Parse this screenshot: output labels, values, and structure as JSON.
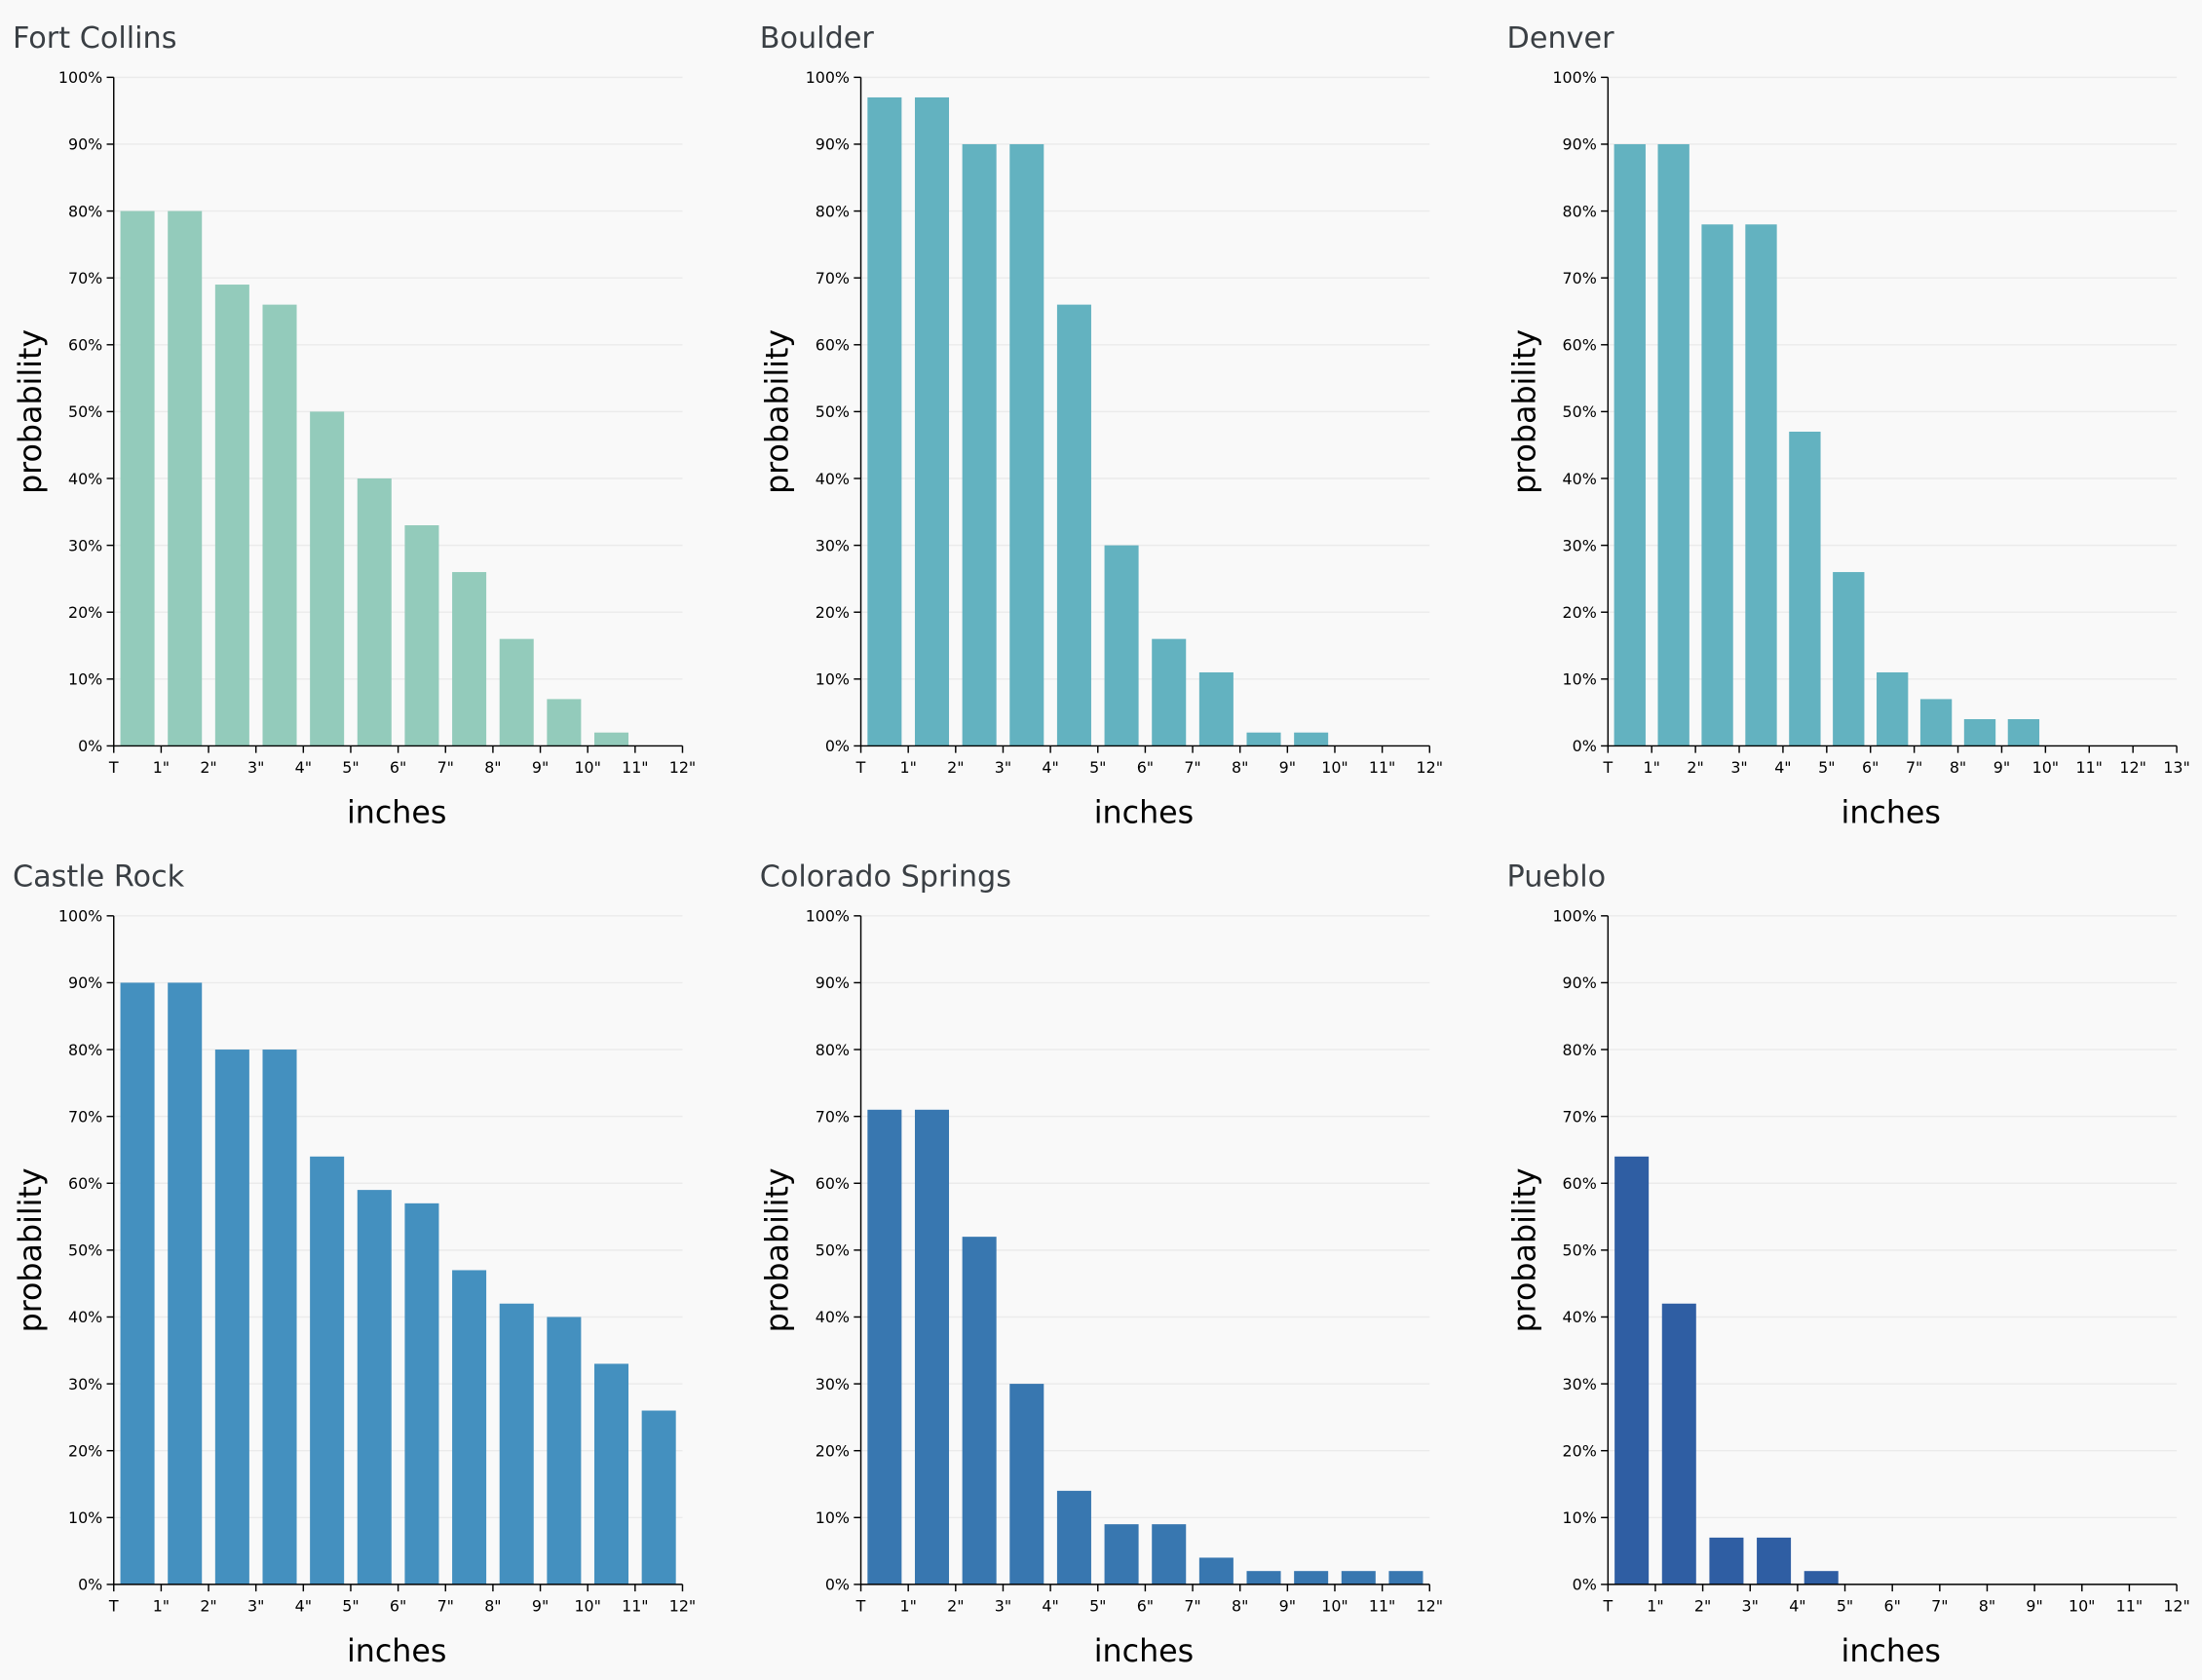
{
  "chart_data": [
    {
      "type": "histogram",
      "title": "Fort Collins",
      "xlabel": "inches",
      "ylabel": "probability",
      "color": "#93cbbb",
      "bins": [
        {
          "value": 0,
          "label": "T"
        },
        {
          "value": 1,
          "label": "1\""
        },
        {
          "value": 2,
          "label": "2\""
        },
        {
          "value": 3,
          "label": "3\""
        },
        {
          "value": 4,
          "label": "4\""
        },
        {
          "value": 5,
          "label": "5\""
        },
        {
          "value": 6,
          "label": "6\""
        },
        {
          "value": 7,
          "label": "7\""
        },
        {
          "value": 8,
          "label": "8\""
        },
        {
          "value": 9,
          "label": "9\""
        },
        {
          "value": 10,
          "label": "10\""
        },
        {
          "value": 11,
          "label": "11\""
        },
        {
          "value": 12,
          "label": "12\""
        }
      ],
      "values": [
        80,
        80,
        69,
        66,
        50,
        40,
        33,
        26,
        16,
        7,
        2,
        0
      ],
      "xlim": [
        0,
        12
      ],
      "ylim": [
        0,
        100
      ],
      "yticks": [
        {
          "value": 0,
          "label": "0%"
        },
        {
          "value": 10,
          "label": "10%"
        },
        {
          "value": 20,
          "label": "20%"
        },
        {
          "value": 30,
          "label": "30%"
        },
        {
          "value": 40,
          "label": "40%"
        },
        {
          "value": 50,
          "label": "50%"
        },
        {
          "value": 60,
          "label": "60%"
        },
        {
          "value": 70,
          "label": "70%"
        },
        {
          "value": 80,
          "label": "80%"
        },
        {
          "value": 90,
          "label": "90%"
        },
        {
          "value": 100,
          "label": "100%"
        }
      ],
      "grid": true
    },
    {
      "type": "histogram",
      "title": "Boulder",
      "xlabel": "inches",
      "ylabel": "probability",
      "color": "#63b2c0",
      "bins": [
        {
          "value": 0,
          "label": "T"
        },
        {
          "value": 1,
          "label": "1\""
        },
        {
          "value": 2,
          "label": "2\""
        },
        {
          "value": 3,
          "label": "3\""
        },
        {
          "value": 4,
          "label": "4\""
        },
        {
          "value": 5,
          "label": "5\""
        },
        {
          "value": 6,
          "label": "6\""
        },
        {
          "value": 7,
          "label": "7\""
        },
        {
          "value": 8,
          "label": "8\""
        },
        {
          "value": 9,
          "label": "9\""
        },
        {
          "value": 10,
          "label": "10\""
        },
        {
          "value": 11,
          "label": "11\""
        },
        {
          "value": 12,
          "label": "12\""
        }
      ],
      "values": [
        97,
        97,
        90,
        90,
        66,
        30,
        16,
        11,
        2,
        2,
        0,
        0
      ],
      "xlim": [
        0,
        12
      ],
      "ylim": [
        0,
        100
      ],
      "yticks": [
        {
          "value": 0,
          "label": "0%"
        },
        {
          "value": 10,
          "label": "10%"
        },
        {
          "value": 20,
          "label": "20%"
        },
        {
          "value": 30,
          "label": "30%"
        },
        {
          "value": 40,
          "label": "40%"
        },
        {
          "value": 50,
          "label": "50%"
        },
        {
          "value": 60,
          "label": "60%"
        },
        {
          "value": 70,
          "label": "70%"
        },
        {
          "value": 80,
          "label": "80%"
        },
        {
          "value": 90,
          "label": "90%"
        },
        {
          "value": 100,
          "label": "100%"
        }
      ],
      "grid": true
    },
    {
      "type": "histogram",
      "title": "Denver",
      "xlabel": "inches",
      "ylabel": "probability",
      "color": "#63b2c0",
      "bins": [
        {
          "value": 0,
          "label": "T"
        },
        {
          "value": 1,
          "label": "1\""
        },
        {
          "value": 2,
          "label": "2\""
        },
        {
          "value": 3,
          "label": "3\""
        },
        {
          "value": 4,
          "label": "4\""
        },
        {
          "value": 5,
          "label": "5\""
        },
        {
          "value": 6,
          "label": "6\""
        },
        {
          "value": 7,
          "label": "7\""
        },
        {
          "value": 8,
          "label": "8\""
        },
        {
          "value": 9,
          "label": "9\""
        },
        {
          "value": 10,
          "label": "10\""
        },
        {
          "value": 11,
          "label": "11\""
        },
        {
          "value": 12,
          "label": "12\""
        },
        {
          "value": 13,
          "label": "13\""
        }
      ],
      "values": [
        90,
        90,
        78,
        78,
        47,
        26,
        11,
        7,
        4,
        4,
        0,
        0,
        0
      ],
      "xlim": [
        0,
        13
      ],
      "ylim": [
        0,
        100
      ],
      "yticks": [
        {
          "value": 0,
          "label": "0%"
        },
        {
          "value": 10,
          "label": "10%"
        },
        {
          "value": 20,
          "label": "20%"
        },
        {
          "value": 30,
          "label": "30%"
        },
        {
          "value": 40,
          "label": "40%"
        },
        {
          "value": 50,
          "label": "50%"
        },
        {
          "value": 60,
          "label": "60%"
        },
        {
          "value": 70,
          "label": "70%"
        },
        {
          "value": 80,
          "label": "80%"
        },
        {
          "value": 90,
          "label": "90%"
        },
        {
          "value": 100,
          "label": "100%"
        }
      ],
      "grid": true
    },
    {
      "type": "histogram",
      "title": "Castle Rock",
      "xlabel": "inches",
      "ylabel": "probability",
      "color": "#4490bf",
      "bins": [
        {
          "value": 0,
          "label": "T"
        },
        {
          "value": 1,
          "label": "1\""
        },
        {
          "value": 2,
          "label": "2\""
        },
        {
          "value": 3,
          "label": "3\""
        },
        {
          "value": 4,
          "label": "4\""
        },
        {
          "value": 5,
          "label": "5\""
        },
        {
          "value": 6,
          "label": "6\""
        },
        {
          "value": 7,
          "label": "7\""
        },
        {
          "value": 8,
          "label": "8\""
        },
        {
          "value": 9,
          "label": "9\""
        },
        {
          "value": 10,
          "label": "10\""
        },
        {
          "value": 11,
          "label": "11\""
        },
        {
          "value": 12,
          "label": "12\""
        }
      ],
      "values": [
        90,
        90,
        80,
        80,
        64,
        59,
        57,
        47,
        42,
        40,
        33,
        26
      ],
      "xlim": [
        0,
        12
      ],
      "ylim": [
        0,
        100
      ],
      "yticks": [
        {
          "value": 0,
          "label": "0%"
        },
        {
          "value": 10,
          "label": "10%"
        },
        {
          "value": 20,
          "label": "20%"
        },
        {
          "value": 30,
          "label": "30%"
        },
        {
          "value": 40,
          "label": "40%"
        },
        {
          "value": 50,
          "label": "50%"
        },
        {
          "value": 60,
          "label": "60%"
        },
        {
          "value": 70,
          "label": "70%"
        },
        {
          "value": 80,
          "label": "80%"
        },
        {
          "value": 90,
          "label": "90%"
        },
        {
          "value": 100,
          "label": "100%"
        }
      ],
      "grid": true
    },
    {
      "type": "histogram",
      "title": "Colorado Springs",
      "xlabel": "inches",
      "ylabel": "probability",
      "color": "#3877b0",
      "bins": [
        {
          "value": 0,
          "label": "T"
        },
        {
          "value": 1,
          "label": "1\""
        },
        {
          "value": 2,
          "label": "2\""
        },
        {
          "value": 3,
          "label": "3\""
        },
        {
          "value": 4,
          "label": "4\""
        },
        {
          "value": 5,
          "label": "5\""
        },
        {
          "value": 6,
          "label": "6\""
        },
        {
          "value": 7,
          "label": "7\""
        },
        {
          "value": 8,
          "label": "8\""
        },
        {
          "value": 9,
          "label": "9\""
        },
        {
          "value": 10,
          "label": "10\""
        },
        {
          "value": 11,
          "label": "11\""
        },
        {
          "value": 12,
          "label": "12\""
        }
      ],
      "values": [
        71,
        71,
        52,
        30,
        14,
        9,
        9,
        4,
        2,
        2,
        2,
        2
      ],
      "xlim": [
        0,
        12
      ],
      "ylim": [
        0,
        100
      ],
      "yticks": [
        {
          "value": 0,
          "label": "0%"
        },
        {
          "value": 10,
          "label": "10%"
        },
        {
          "value": 20,
          "label": "20%"
        },
        {
          "value": 30,
          "label": "30%"
        },
        {
          "value": 40,
          "label": "40%"
        },
        {
          "value": 50,
          "label": "50%"
        },
        {
          "value": 60,
          "label": "60%"
        },
        {
          "value": 70,
          "label": "70%"
        },
        {
          "value": 80,
          "label": "80%"
        },
        {
          "value": 90,
          "label": "90%"
        },
        {
          "value": 100,
          "label": "100%"
        }
      ],
      "grid": true
    },
    {
      "type": "histogram",
      "title": "Pueblo",
      "xlabel": "inches",
      "ylabel": "probability",
      "color": "#2f5ea3",
      "bins": [
        {
          "value": 0,
          "label": "T"
        },
        {
          "value": 1,
          "label": "1\""
        },
        {
          "value": 2,
          "label": "2\""
        },
        {
          "value": 3,
          "label": "3\""
        },
        {
          "value": 4,
          "label": "4\""
        },
        {
          "value": 5,
          "label": "5\""
        },
        {
          "value": 6,
          "label": "6\""
        },
        {
          "value": 7,
          "label": "7\""
        },
        {
          "value": 8,
          "label": "8\""
        },
        {
          "value": 9,
          "label": "9\""
        },
        {
          "value": 10,
          "label": "10\""
        },
        {
          "value": 11,
          "label": "11\""
        },
        {
          "value": 12,
          "label": "12\""
        }
      ],
      "values": [
        64,
        42,
        7,
        7,
        2,
        0,
        0,
        0,
        0,
        0,
        0,
        0
      ],
      "xlim": [
        0,
        12
      ],
      "ylim": [
        0,
        100
      ],
      "yticks": [
        {
          "value": 0,
          "label": "0%"
        },
        {
          "value": 10,
          "label": "10%"
        },
        {
          "value": 20,
          "label": "20%"
        },
        {
          "value": 30,
          "label": "30%"
        },
        {
          "value": 40,
          "label": "40%"
        },
        {
          "value": 50,
          "label": "50%"
        },
        {
          "value": 60,
          "label": "60%"
        },
        {
          "value": 70,
          "label": "70%"
        },
        {
          "value": 80,
          "label": "80%"
        },
        {
          "value": 90,
          "label": "90%"
        },
        {
          "value": 100,
          "label": "100%"
        }
      ],
      "grid": true
    }
  ]
}
